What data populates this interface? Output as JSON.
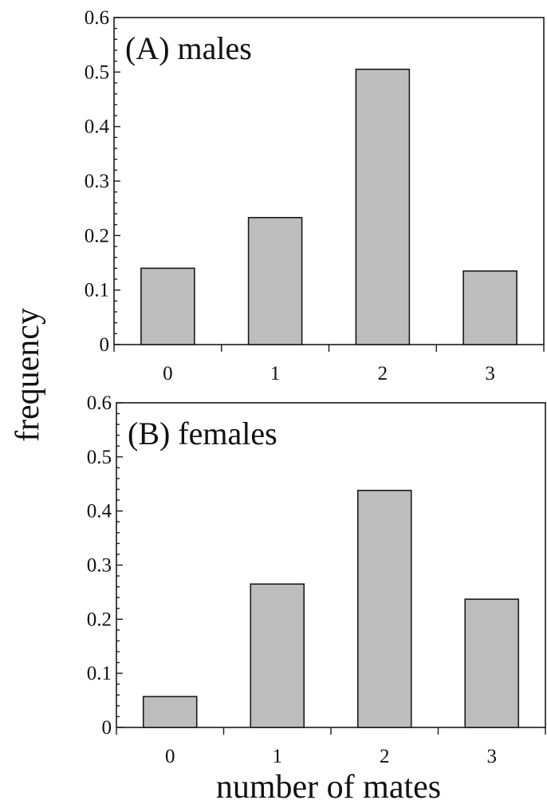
{
  "chart_data": [
    {
      "type": "bar",
      "title": "(A) males",
      "categories": [
        "0",
        "1",
        "2",
        "3"
      ],
      "values": [
        0.14,
        0.233,
        0.505,
        0.135
      ],
      "ylim": [
        0,
        0.6
      ],
      "yticks": [
        "0",
        "0.1",
        "0.2",
        "0.3",
        "0.4",
        "0.5",
        "0.6"
      ],
      "grid": false,
      "bar_color": "#bdbdbd"
    },
    {
      "type": "bar",
      "title": "(B) females",
      "categories": [
        "0",
        "1",
        "2",
        "3"
      ],
      "values": [
        0.057,
        0.265,
        0.438,
        0.237
      ],
      "ylim": [
        0,
        0.6
      ],
      "yticks": [
        "0",
        "0.1",
        "0.2",
        "0.3",
        "0.4",
        "0.5",
        "0.6"
      ],
      "grid": false,
      "bar_color": "#bdbdbd"
    }
  ],
  "ylabel": "frequency",
  "xlabel": "number of mates"
}
